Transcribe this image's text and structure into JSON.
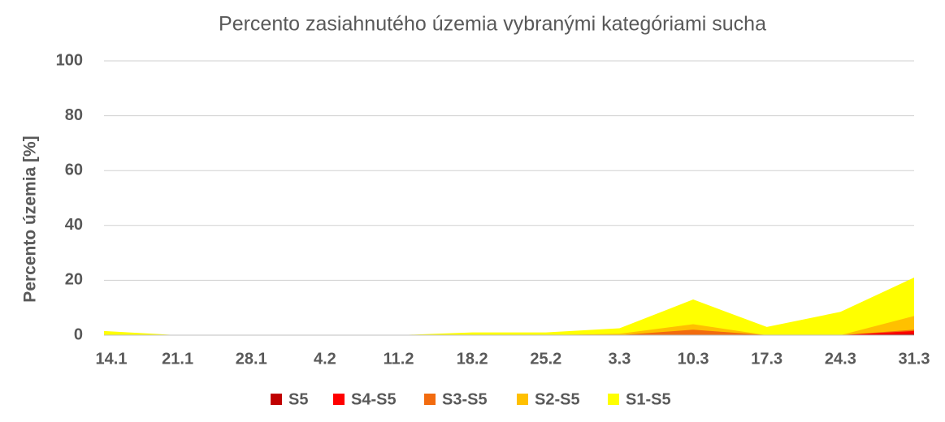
{
  "chart_data": {
    "type": "area",
    "title": "Percento zasiahnutého územia vybranými kategóriami sucha",
    "y_label": "Percento územia  [%]",
    "categories": [
      "14.1",
      "21.1",
      "28.1",
      "4.2",
      "11.2",
      "18.2",
      "25.2",
      "3.3",
      "10.3",
      "17.3",
      "24.3",
      "31.3"
    ],
    "series": [
      {
        "name": "S5",
        "color": "#c00000",
        "values": [
          0,
          0,
          0,
          0,
          0,
          0,
          0,
          0,
          0,
          0,
          0,
          0.5
        ]
      },
      {
        "name": "S4-S5",
        "color": "#ff0000",
        "values": [
          0,
          0,
          0,
          0,
          0,
          0,
          0,
          0,
          0,
          0,
          0,
          1.5
        ]
      },
      {
        "name": "S3-S5",
        "color": "#f26b0f",
        "values": [
          0,
          0,
          0,
          0,
          0,
          0,
          0,
          0,
          2,
          0,
          0,
          2
        ]
      },
      {
        "name": "S2-S5",
        "color": "#ffc000",
        "values": [
          0,
          0,
          0,
          0,
          0,
          0,
          0,
          0.5,
          4,
          0,
          0,
          7
        ]
      },
      {
        "name": "S1-S5",
        "color": "#ffff00",
        "values": [
          1.5,
          0,
          0,
          0,
          0,
          1,
          1,
          2.5,
          13,
          3,
          8.5,
          21
        ]
      }
    ],
    "ylim": [
      0,
      100
    ],
    "yticks": [
      0,
      20,
      40,
      60,
      80,
      100
    ],
    "grid": true,
    "legend": "bottom"
  }
}
